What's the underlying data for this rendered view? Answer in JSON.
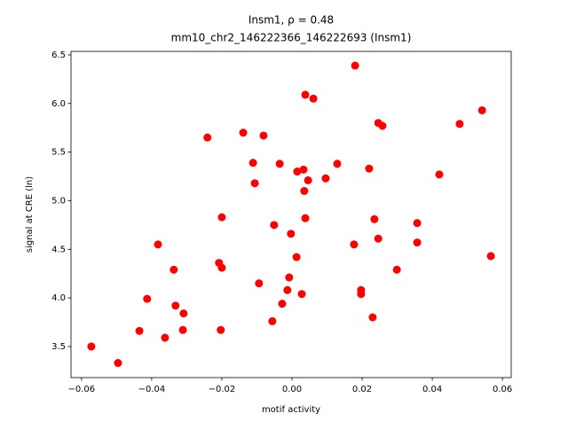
{
  "chart_data": {
    "type": "scatter",
    "title": "Insm1, ρ = 0.48",
    "subtitle": "mm10_chr2_146222366_146222693 (Insm1)",
    "x_label": "motif activity",
    "y_label": "signal at CRE (ln)",
    "color": "#ff0000",
    "xlim": [
      -0.063,
      0.0625
    ],
    "ylim": [
      3.18,
      6.536
    ],
    "xticks": [
      {
        "value": -0.06,
        "label": "−0.06"
      },
      {
        "value": -0.04,
        "label": "−0.04"
      },
      {
        "value": -0.02,
        "label": "−0.02"
      },
      {
        "value": 0,
        "label": "0.00"
      },
      {
        "value": 0.02,
        "label": "0.02"
      },
      {
        "value": 0.04,
        "label": "0.04"
      },
      {
        "value": 0.06,
        "label": "0.06"
      }
    ],
    "yticks": [
      3.5,
      {
        "value": 4,
        "label": "4.0"
      },
      4.5,
      {
        "value": 5,
        "label": "5.0"
      },
      5.5,
      {
        "value": 6,
        "label": "6.0"
      },
      6.5
    ],
    "x": [
      -0.0572,
      -0.0496,
      -0.0435,
      -0.0413,
      -0.0382,
      -0.0362,
      -0.0337,
      -0.0332,
      -0.0309,
      -0.0311,
      -0.0241,
      -0.0208,
      -0.02,
      -0.02,
      -0.0203,
      -0.0139,
      -0.0111,
      -0.0106,
      -0.0094,
      -0.0081,
      -0.0051,
      -0.0056,
      -0.0035,
      -0.0028,
      -0.0013,
      -0.0008,
      -0.0003,
      0.0013,
      0.0015,
      0.0028,
      0.0033,
      0.0035,
      0.0038,
      0.0038,
      0.0046,
      0.0061,
      0.0096,
      0.0129,
      0.0177,
      0.018,
      0.0197,
      0.0197,
      0.022,
      0.023,
      0.0235,
      0.0246,
      0.0246,
      0.0258,
      0.0299,
      0.0357,
      0.0357,
      0.042,
      0.0478,
      0.0542,
      0.0567
    ],
    "values": [
      3.5,
      3.33,
      3.66,
      3.99,
      4.55,
      3.59,
      4.29,
      3.92,
      3.84,
      3.67,
      5.65,
      4.36,
      4.31,
      4.83,
      3.67,
      5.7,
      5.39,
      5.18,
      4.15,
      5.67,
      4.75,
      3.76,
      5.38,
      3.94,
      4.08,
      4.21,
      4.66,
      4.42,
      5.3,
      4.04,
      5.32,
      5.1,
      6.09,
      4.82,
      5.21,
      6.05,
      5.23,
      5.38,
      4.55,
      6.39,
      4.08,
      4.04,
      5.33,
      3.8,
      4.81,
      5.8,
      4.61,
      5.77,
      4.29,
      4.77,
      4.57,
      5.27,
      5.79,
      5.93,
      4.43
    ]
  }
}
